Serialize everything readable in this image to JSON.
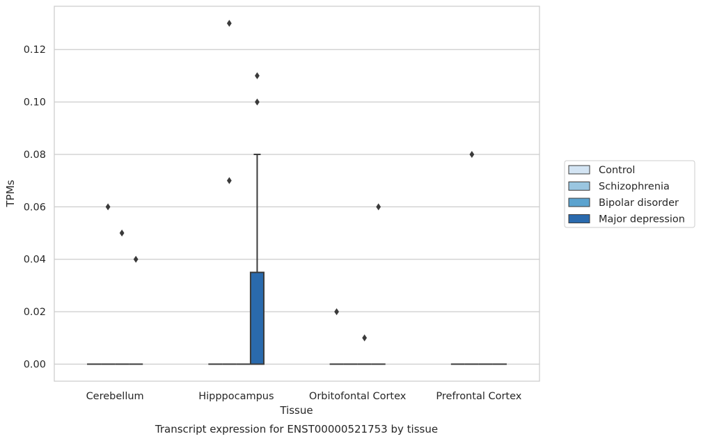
{
  "chart_data": {
    "type": "boxplot",
    "title": "Transcript expression for ENST00000521753 by tissue",
    "xlabel": "Tissue",
    "ylabel": "TPMs",
    "ylim": [
      -0.0065,
      0.1365
    ],
    "yticks": [
      0.0,
      0.02,
      0.04,
      0.06,
      0.08,
      0.1,
      0.12
    ],
    "ytick_labels": [
      "0.00",
      "0.02",
      "0.04",
      "0.06",
      "0.08",
      "0.10",
      "0.12"
    ],
    "grid": true,
    "legend_position": "right",
    "categories": [
      "Cerebellum",
      "Hipppocampus",
      "Orbitofontal Cortex",
      "Prefrontal Cortex"
    ],
    "series": [
      {
        "name": "Control",
        "color": "#d3e4f3",
        "boxes": [
          {
            "category": "Cerebellum",
            "q1": 0,
            "median": 0,
            "q3": 0,
            "whisker_low": 0,
            "whisker_high": 0,
            "outliers": []
          },
          {
            "category": "Hipppocampus",
            "q1": 0,
            "median": 0,
            "q3": 0,
            "whisker_low": 0,
            "whisker_high": 0,
            "outliers": []
          },
          {
            "category": "Orbitofontal Cortex",
            "q1": 0,
            "median": 0,
            "q3": 0,
            "whisker_low": 0,
            "whisker_high": 0,
            "outliers": [
              0.02
            ]
          },
          {
            "category": "Prefrontal Cortex",
            "q1": 0,
            "median": 0,
            "q3": 0,
            "whisker_low": 0,
            "whisker_high": 0,
            "outliers": []
          }
        ]
      },
      {
        "name": "Schizophrenia",
        "color": "#9ac6e0",
        "boxes": [
          {
            "category": "Cerebellum",
            "q1": 0,
            "median": 0,
            "q3": 0,
            "whisker_low": 0,
            "whisker_high": 0,
            "outliers": [
              0.06
            ]
          },
          {
            "category": "Hipppocampus",
            "q1": 0,
            "median": 0,
            "q3": 0,
            "whisker_low": 0,
            "whisker_high": 0,
            "outliers": [
              0.07,
              0.13
            ]
          },
          {
            "category": "Orbitofontal Cortex",
            "q1": 0,
            "median": 0,
            "q3": 0,
            "whisker_low": 0,
            "whisker_high": 0,
            "outliers": []
          },
          {
            "category": "Prefrontal Cortex",
            "q1": 0,
            "median": 0,
            "q3": 0,
            "whisker_low": 0,
            "whisker_high": 0,
            "outliers": [
              0.08
            ]
          }
        ]
      },
      {
        "name": "Bipolar disorder",
        "color": "#5ba3cf",
        "boxes": [
          {
            "category": "Cerebellum",
            "q1": 0,
            "median": 0,
            "q3": 0,
            "whisker_low": 0,
            "whisker_high": 0,
            "outliers": [
              0.05
            ]
          },
          {
            "category": "Hipppocampus",
            "q1": 0,
            "median": 0,
            "q3": 0,
            "whisker_low": 0,
            "whisker_high": 0,
            "outliers": []
          },
          {
            "category": "Orbitofontal Cortex",
            "q1": 0,
            "median": 0,
            "q3": 0,
            "whisker_low": 0,
            "whisker_high": 0,
            "outliers": [
              0.01
            ]
          },
          {
            "category": "Prefrontal Cortex",
            "q1": 0,
            "median": 0,
            "q3": 0,
            "whisker_low": 0,
            "whisker_high": 0,
            "outliers": []
          }
        ]
      },
      {
        "name": "Major depression",
        "color": "#2a6aad",
        "boxes": [
          {
            "category": "Cerebellum",
            "q1": 0,
            "median": 0,
            "q3": 0,
            "whisker_low": 0,
            "whisker_high": 0,
            "outliers": [
              0.04
            ]
          },
          {
            "category": "Hipppocampus",
            "q1": 0,
            "median": 0,
            "q3": 0.035,
            "whisker_low": 0,
            "whisker_high": 0.08,
            "outliers": [
              0.1,
              0.11
            ]
          },
          {
            "category": "Orbitofontal Cortex",
            "q1": 0,
            "median": 0,
            "q3": 0,
            "whisker_low": 0,
            "whisker_high": 0,
            "outliers": [
              0.06
            ]
          },
          {
            "category": "Prefrontal Cortex",
            "q1": 0,
            "median": 0,
            "q3": 0,
            "whisker_low": 0,
            "whisker_high": 0,
            "outliers": []
          }
        ]
      }
    ]
  }
}
